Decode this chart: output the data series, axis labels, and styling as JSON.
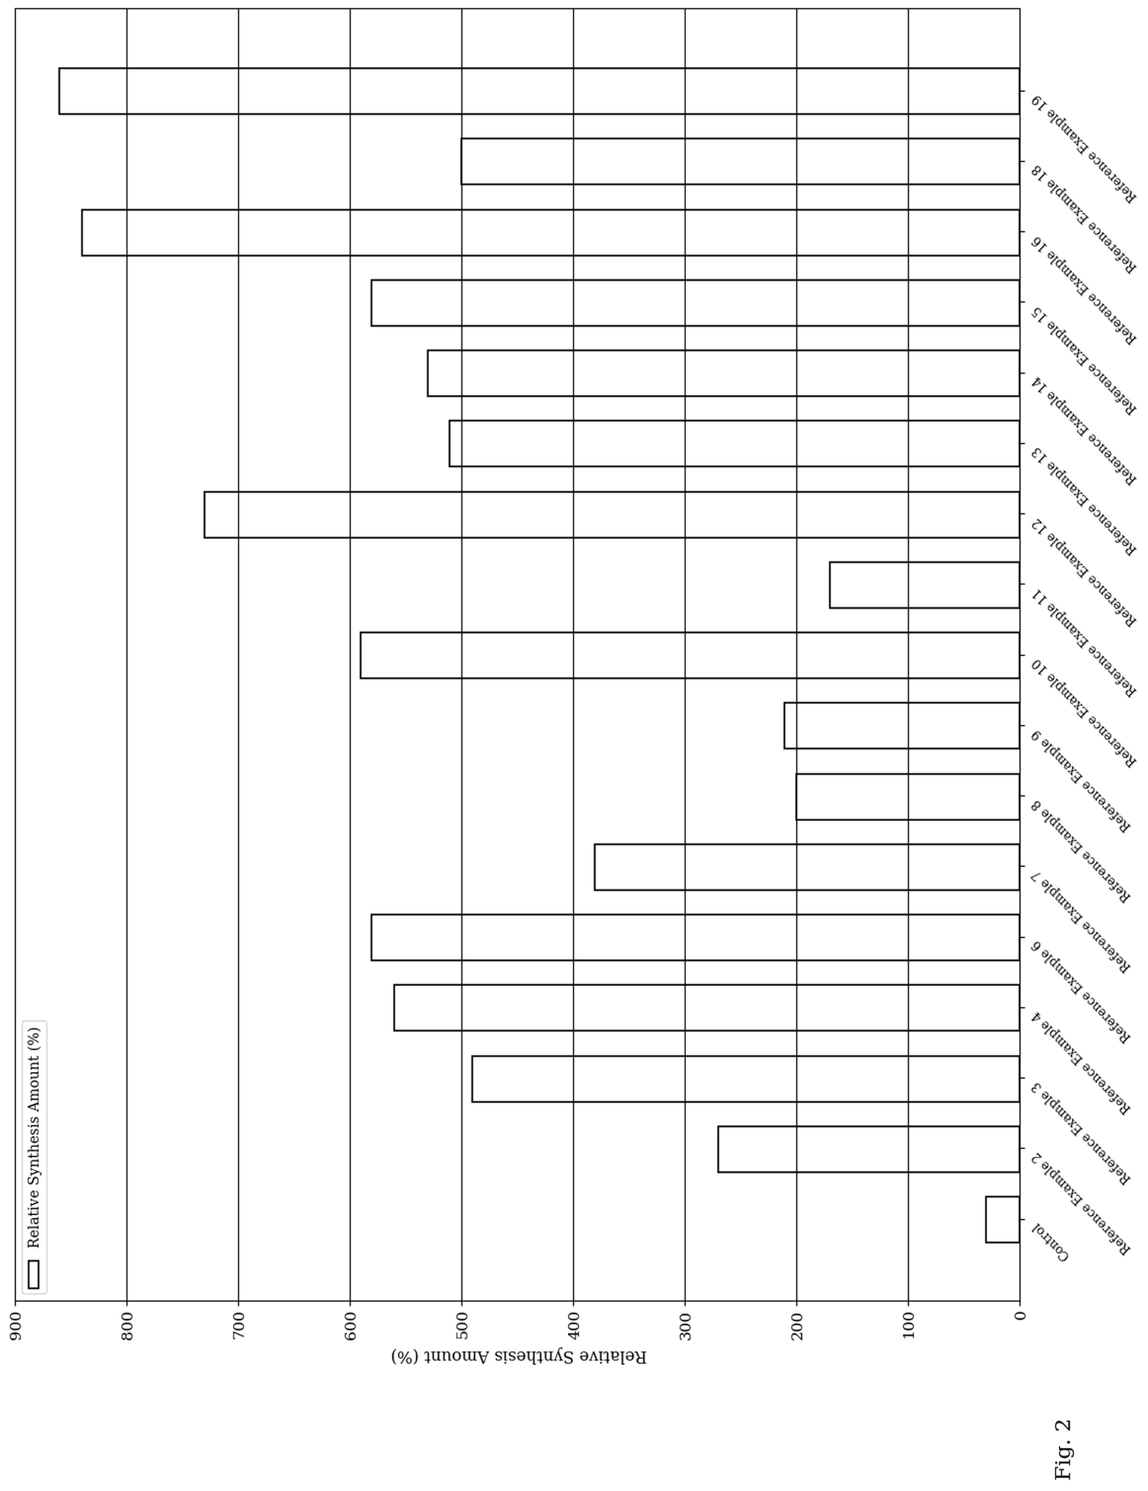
{
  "categories": [
    "Control",
    "Reference Example 2",
    "Reference Example 3",
    "Reference Example 4",
    "Reference Example 6",
    "Reference Example 7",
    "Reference Example 8",
    "Reference Example 9",
    "Reference Example 10",
    "Reference Example 11",
    "Reference Example 12",
    "Reference Example 13",
    "Reference Example 14",
    "Reference Example 15",
    "Reference Example 16",
    "Reference Example 18",
    "Reference Example 19"
  ],
  "values": [
    30,
    270,
    490,
    560,
    580,
    380,
    200,
    210,
    590,
    170,
    730,
    510,
    530,
    580,
    840,
    500,
    860
  ],
  "ylabel": "Relative Synthesis Amount (%)",
  "xlim": [
    0,
    900
  ],
  "xticks": [
    0,
    100,
    200,
    300,
    400,
    500,
    600,
    700,
    800,
    900
  ],
  "legend_label": "Relative Synthesis Amount (%)",
  "bar_color": "white",
  "bar_edgecolor": "black",
  "fig_title": "Fig. 2",
  "background_color": "white",
  "bar_linewidth": 1.2,
  "figure_width": 16.27,
  "figure_height": 21.14
}
